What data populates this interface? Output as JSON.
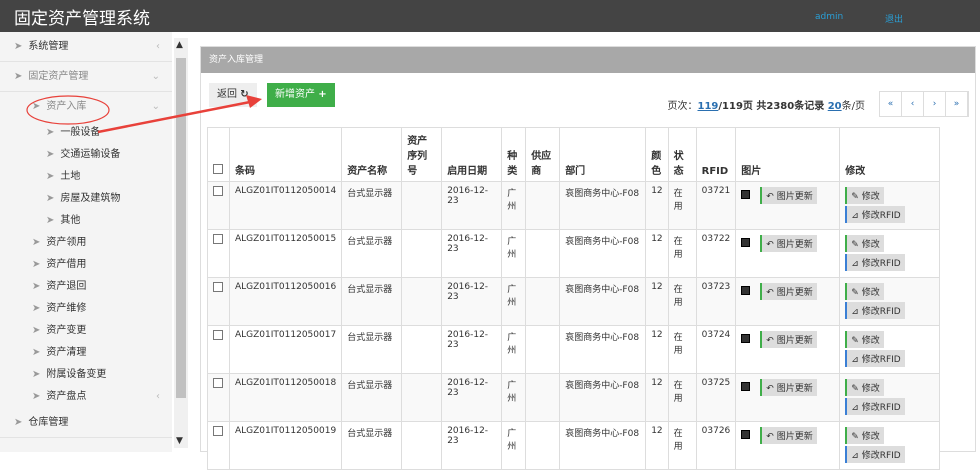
{
  "header": {
    "title": "固定资产管理系统",
    "user_link": "admin",
    "logout_link": "退出"
  },
  "sidebar": {
    "items": [
      {
        "label": "系统管理",
        "level": 0
      },
      {
        "label": "固定资产管理",
        "level": 0
      },
      {
        "label": "资产入库",
        "level": 1,
        "highlighted": true
      },
      {
        "label": "一般设备",
        "level": 2
      },
      {
        "label": "交通运输设备",
        "level": 2
      },
      {
        "label": "土地",
        "level": 2
      },
      {
        "label": "房屋及建筑物",
        "level": 2
      },
      {
        "label": "其他",
        "level": 2
      },
      {
        "label": "资产领用",
        "level": 1
      },
      {
        "label": "资产借用",
        "level": 1
      },
      {
        "label": "资产退回",
        "level": 1
      },
      {
        "label": "资产维修",
        "level": 1
      },
      {
        "label": "资产变更",
        "level": 1
      },
      {
        "label": "资产清理",
        "level": 1
      },
      {
        "label": "附属设备变更",
        "level": 1
      },
      {
        "label": "资产盘点",
        "level": 1
      },
      {
        "label": "仓库管理",
        "level": 0
      }
    ]
  },
  "panel": {
    "title": "资产入库管理",
    "back_label": "返回",
    "add_label": "新增资产",
    "pagination": {
      "prefix": "页次：",
      "current": "119",
      "total_text": "/119页 共2380条记录 ",
      "per_page": "20",
      "per_page_suffix": "条/页",
      "buttons": [
        "«",
        "‹",
        "›",
        "»"
      ]
    }
  },
  "table": {
    "columns": [
      "条码",
      "资产名称",
      "资产序列号",
      "启用日期",
      "种类",
      "供应商",
      "部门",
      "颜色",
      "状态",
      "RFID",
      "图片",
      "修改"
    ],
    "rows": [
      [
        "ALGZ01IT0112050014",
        "台式显示器",
        "",
        "2016-12-23",
        "广州",
        "",
        "哀图商务中心-F08",
        "12",
        "在用",
        "03721"
      ],
      [
        "ALGZ01IT0112050015",
        "台式显示器",
        "",
        "2016-12-23",
        "广州",
        "",
        "哀图商务中心-F08",
        "12",
        "在用",
        "03722"
      ],
      [
        "ALGZ01IT0112050016",
        "台式显示器",
        "",
        "2016-12-23",
        "广州",
        "",
        "哀图商务中心-F08",
        "12",
        "在用",
        "03723"
      ],
      [
        "ALGZ01IT0112050017",
        "台式显示器",
        "",
        "2016-12-23",
        "广州",
        "",
        "哀图商务中心-F08",
        "12",
        "在用",
        "03724"
      ],
      [
        "ALGZ01IT0112050018",
        "台式显示器",
        "",
        "2016-12-23",
        "广州",
        "",
        "哀图商务中心-F08",
        "12",
        "在用",
        "03725"
      ],
      [
        "ALGZ01IT0112050019",
        "台式显示器",
        "",
        "2016-12-23",
        "广州",
        "",
        "哀图商务中心-F08",
        "12",
        "在用",
        "03726"
      ]
    ],
    "pic_update_label": "图片更新",
    "edit_label": "修改",
    "edit_rfid_label": "修改RFID"
  },
  "colors": {
    "header_bg": "#444444",
    "add_button": "#3fae49",
    "annotation": "#e8413a",
    "link": "#2a6fb0"
  }
}
